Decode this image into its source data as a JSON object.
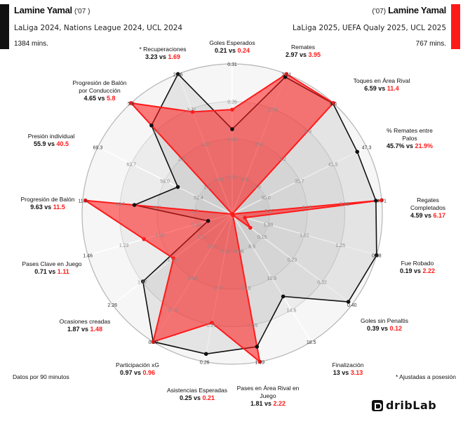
{
  "left_player": {
    "name": "Lamine Yamal",
    "year": "('07 )",
    "competitions": "LaLiga 2024, Nations League 2024, UCL 2024",
    "minutes": "1384 mins.",
    "color": "#111111"
  },
  "right_player": {
    "name": "Lamine Yamal",
    "year": "('07)",
    "competitions": "LaLiga 2025, UEFA Qualy 2025, UCL 2025",
    "minutes": "767 mins.",
    "color": "#ff1a1a"
  },
  "footer": {
    "per90_note": "Datos por 90 minutos",
    "possession_note": "* Ajustadas a posesión",
    "logo_text": "dribLab"
  },
  "chart_data": {
    "type": "radar",
    "vs_label": "vs",
    "series_colors": [
      "#111111",
      "#ff1a1a"
    ],
    "axes": [
      {
        "label": "Goles Esperados",
        "ticks": [
          "0.14",
          "0.20",
          "0.26",
          "0.31"
        ],
        "values": [
          "0.21",
          "0.24"
        ]
      },
      {
        "label": "Remates",
        "ticks": [
          "1.61",
          "2.07",
          "2.54",
          "3.01"
        ],
        "values": [
          "2.97",
          "3.95"
        ]
      },
      {
        "label": "Toques en Área Rival",
        "ticks": [
          "4.5",
          "5.2",
          "5.9",
          "6.6"
        ],
        "values": [
          "6.59",
          "11.4"
        ]
      },
      {
        "label": "% Remates entre Palos",
        "ticks": [
          "30.0",
          "35.7",
          "41.5",
          "47.3"
        ],
        "values": [
          "45.7%",
          "21.9%"
        ]
      },
      {
        "label": "Regates Completados",
        "ticks": [
          "2.37",
          "3.15",
          "3.93",
          "4.71"
        ],
        "values": [
          "4.59",
          "6.17"
        ]
      },
      {
        "label": "Fue Robado",
        "ticks": [
          "1.98",
          "1.61",
          "1.25",
          "0.88"
        ],
        "values": [
          "0.19",
          "2.22"
        ]
      },
      {
        "label": "Goles sin Penaltis",
        "ticks": [
          "0.15",
          "0.23",
          "0.32",
          "0.40"
        ],
        "values": [
          "0.39",
          "0.12"
        ]
      },
      {
        "label": "Finalización",
        "ticks": [
          "6.9",
          "10.8",
          "14.6",
          "18.5"
        ],
        "values": [
          "13",
          "3.13"
        ]
      },
      {
        "label": "Pases en Área Rival en\nJuego",
        "ticks": [
          "0.66",
          "1.10",
          "1.55",
          "1.99"
        ],
        "values": [
          "1.81",
          "2.22"
        ]
      },
      {
        "label": "Asistencias Esperadas",
        "ticks": [
          "0.12",
          "0.17",
          "0.21",
          "0.26"
        ],
        "values": [
          "0.25",
          "0.21"
        ]
      },
      {
        "label": "Participación xG",
        "ticks": [
          "0.51",
          "0.64",
          "0.76",
          "0.89"
        ],
        "values": [
          "0.97",
          "0.96"
        ]
      },
      {
        "label": "Ocasiones creadas",
        "ticks": [
          "1.11",
          "1.49",
          "1.87",
          "2.26"
        ],
        "values": [
          "1.87",
          "1.48"
        ]
      },
      {
        "label": "Pases Clave en Juego",
        "ticks": [
          "0.78",
          "1.00",
          "1.23",
          "1.46"
        ],
        "values": [
          "0.71",
          "1.11"
        ]
      },
      {
        "label": "Progresión de Balón",
        "ticks": [
          "7.3",
          "8.7",
          "10.2",
          "11.6"
        ],
        "values": [
          "9.63",
          "11.5"
        ]
      },
      {
        "label": "Presión individual",
        "ticks": [
          "52.4",
          "58.0",
          "63.7",
          "69.3"
        ],
        "values": [
          "55.9",
          "40.5"
        ]
      },
      {
        "label": "Progresión de Balón\npor Conducción",
        "ticks": [
          "1.5",
          "2.9",
          "4.4",
          "5.8"
        ],
        "values": [
          "4.65",
          "5.8"
        ]
      },
      {
        "label": "* Recuperaciones",
        "ticks": [
          "1.03",
          "1.37",
          "1.71",
          "2.06"
        ],
        "values": [
          "3.23",
          "1.69"
        ]
      }
    ]
  }
}
